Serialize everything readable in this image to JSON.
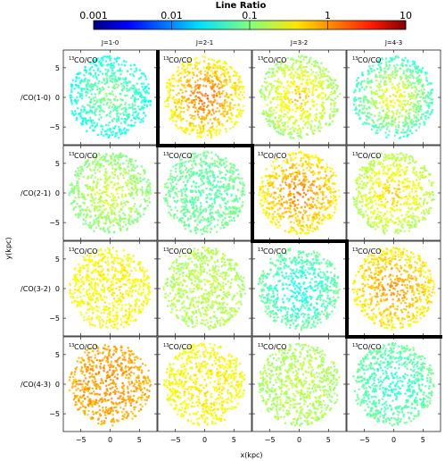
{
  "chart_data": {
    "type": "scatter",
    "colorbar": {
      "title": "Line Ratio",
      "scale": "log",
      "range": [
        0.001,
        10
      ],
      "tick_labels": [
        "0.001",
        "0.01",
        "0.1",
        "1",
        "10"
      ],
      "tick_values": [
        0.001,
        0.01,
        0.1,
        1,
        10
      ],
      "colormap": "jet"
    },
    "column_labels": [
      "J=1-0",
      "J=2-1",
      "J=3-2",
      "J=4-3"
    ],
    "row_labels": [
      "/CO(1-0)",
      "/CO(2-1)",
      "/CO(3-2)",
      "/CO(4-3)"
    ],
    "panel_label_sup": "13",
    "panel_label_text": "CO/CO",
    "xlabel": "x(kpc)",
    "ylabel": "y(kpc)",
    "xlim": [
      -8,
      8
    ],
    "ylim": [
      -8,
      8
    ],
    "x_tick_labels": [
      "−5",
      "0",
      "5"
    ],
    "x_tick_values": [
      -5,
      0,
      5
    ],
    "y_tick_labels": [
      "5",
      "0",
      "−5"
    ],
    "y_tick_values": [
      5,
      0,
      -5
    ],
    "panels": [
      [
        {
          "center_ratio": 0.12,
          "edge_ratio": 0.035
        },
        {
          "center_ratio": 1.4,
          "edge_ratio": 0.3
        },
        {
          "center_ratio": 0.6,
          "edge_ratio": 0.12
        },
        {
          "center_ratio": 0.45,
          "edge_ratio": 0.05
        }
      ],
      [
        {
          "center_ratio": 0.25,
          "edge_ratio": 0.1
        },
        {
          "center_ratio": 0.06,
          "edge_ratio": 0.09
        },
        {
          "center_ratio": 1.1,
          "edge_ratio": 0.35
        },
        {
          "center_ratio": 0.6,
          "edge_ratio": 0.15
        }
      ],
      [
        {
          "center_ratio": 0.35,
          "edge_ratio": 0.3
        },
        {
          "center_ratio": 0.18,
          "edge_ratio": 0.15
        },
        {
          "center_ratio": 0.03,
          "edge_ratio": 0.08
        },
        {
          "center_ratio": 0.9,
          "edge_ratio": 0.35
        }
      ],
      [
        {
          "center_ratio": 0.9,
          "edge_ratio": 0.65
        },
        {
          "center_ratio": 0.4,
          "edge_ratio": 0.3
        },
        {
          "center_ratio": 0.18,
          "edge_ratio": 0.14
        },
        {
          "center_ratio": 0.04,
          "edge_ratio": 0.08
        }
      ]
    ],
    "highlighted_boundary": "staircase line separating diagonal panels from upper-right panels",
    "grid": false,
    "legend": "none"
  }
}
